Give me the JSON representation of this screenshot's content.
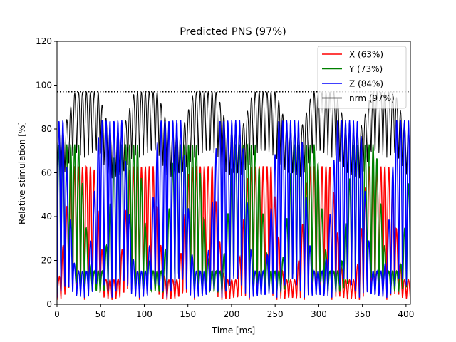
{
  "chart_data": {
    "type": "line",
    "title": "Predicted PNS (97%)",
    "xlabel": "Time [ms]",
    "ylabel": "Relative stimulation [%]",
    "xlim": [
      0,
      405
    ],
    "ylim": [
      0,
      120
    ],
    "xticks": [
      0,
      50,
      100,
      150,
      200,
      250,
      300,
      350,
      400
    ],
    "yticks": [
      0,
      20,
      40,
      60,
      80,
      100,
      120
    ],
    "threshold": {
      "value": 97,
      "style": "dotted",
      "color": "#000000"
    },
    "legend_position": "top-right",
    "period_ms": 4.5,
    "block_period_ms": 68,
    "series": [
      {
        "name": "X (63%)",
        "color": "#ff0000",
        "peak": 63,
        "baseline": 2,
        "draw_order": 2
      },
      {
        "name": "Y (73%)",
        "color": "#008000",
        "peak": 73,
        "baseline": 5,
        "draw_order": 3
      },
      {
        "name": "Z (84%)",
        "color": "#0000ff",
        "peak": 84,
        "baseline": 3,
        "draw_order": 4
      },
      {
        "name": "nrm (97%)",
        "color": "#000000",
        "peak": 97,
        "baseline": 30,
        "draw_order": 1
      }
    ]
  }
}
